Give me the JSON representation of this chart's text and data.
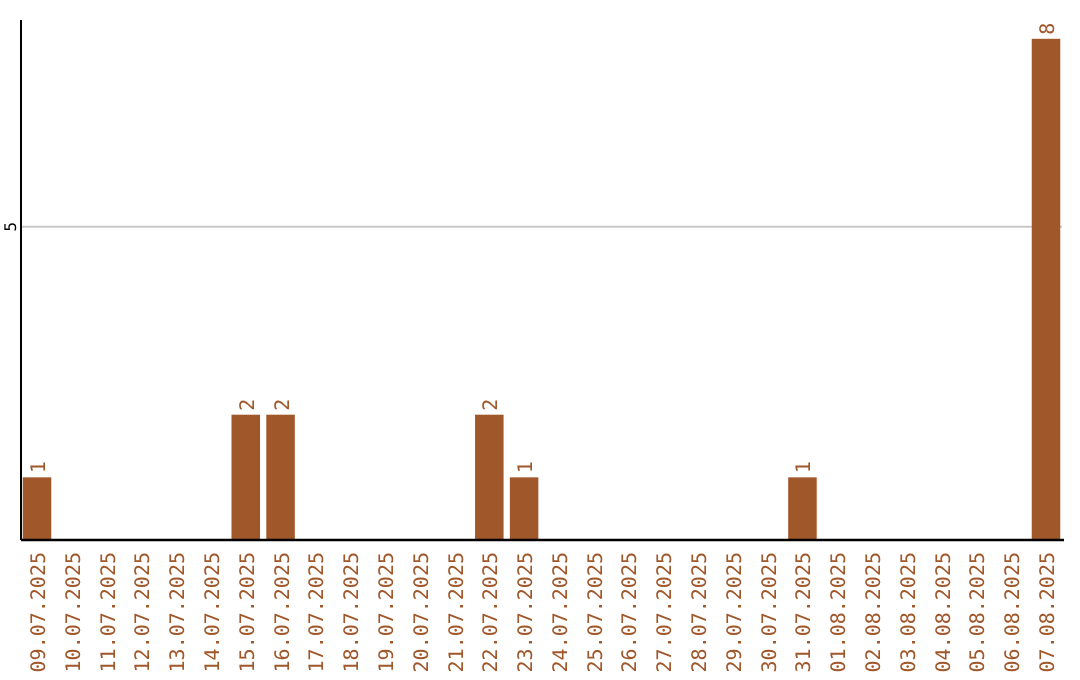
{
  "chart_data": {
    "type": "bar",
    "categories": [
      "09.07.2025",
      "10.07.2025",
      "11.07.2025",
      "12.07.2025",
      "13.07.2025",
      "14.07.2025",
      "15.07.2025",
      "16.07.2025",
      "17.07.2025",
      "18.07.2025",
      "19.07.2025",
      "20.07.2025",
      "21.07.2025",
      "22.07.2025",
      "23.07.2025",
      "24.07.2025",
      "25.07.2025",
      "26.07.2025",
      "27.07.2025",
      "28.07.2025",
      "29.07.2025",
      "30.07.2025",
      "31.07.2025",
      "01.08.2025",
      "02.08.2025",
      "03.08.2025",
      "04.08.2025",
      "05.08.2025",
      "06.08.2025",
      "07.08.2025"
    ],
    "values": [
      1,
      0,
      0,
      0,
      0,
      0,
      2,
      2,
      0,
      0,
      0,
      0,
      0,
      2,
      1,
      0,
      0,
      0,
      0,
      0,
      0,
      0,
      1,
      0,
      0,
      0,
      0,
      0,
      0,
      8
    ],
    "value_labels": [
      "1",
      null,
      null,
      null,
      null,
      null,
      "2",
      "2",
      null,
      null,
      null,
      null,
      null,
      "2",
      "1",
      null,
      null,
      null,
      null,
      null,
      null,
      null,
      "1",
      null,
      null,
      null,
      null,
      null,
      null,
      "8"
    ],
    "color": "#a0572a",
    "ylim": [
      0,
      8.3
    ],
    "yticks": [
      5
    ],
    "grid": "y"
  }
}
